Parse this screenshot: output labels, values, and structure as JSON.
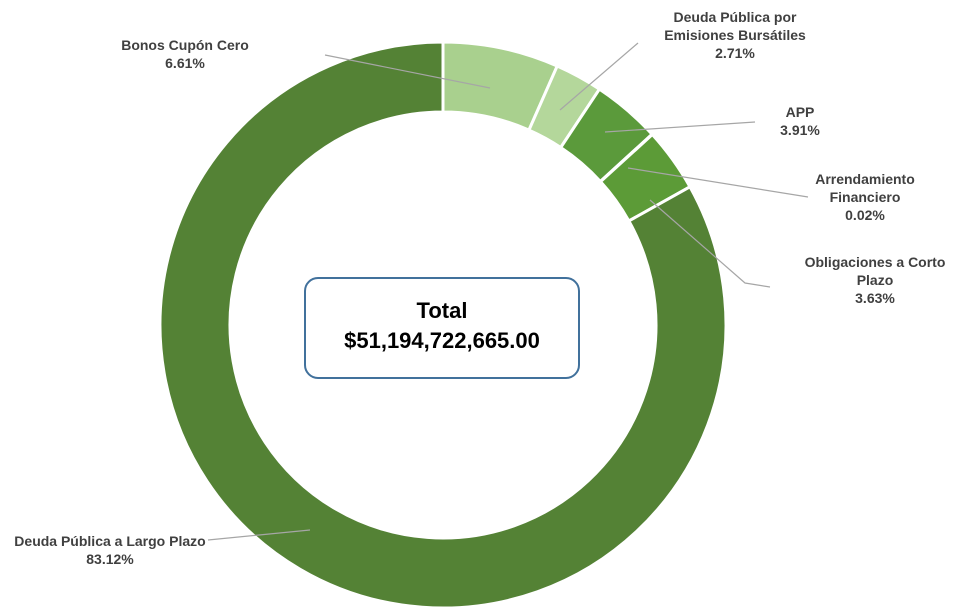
{
  "chart_data": {
    "type": "donut",
    "categories": [
      "Bonos Cupón Cero",
      "Deuda Pública por Emisiones Bursátiles",
      "APP",
      "Arrendamiento Financiero",
      "Obligaciones a Corto Plazo",
      "Deuda Pública a Largo Plazo"
    ],
    "values": [
      6.61,
      2.71,
      3.91,
      0.02,
      3.63,
      83.12
    ],
    "value_labels": [
      "6.61%",
      "2.71%",
      "3.91%",
      "0.02%",
      "3.63%",
      "83.12%"
    ],
    "colors": [
      "#a9d08e",
      "#b4d79b",
      "#5b9a3b",
      "#70ad47",
      "#5c9b37",
      "#548235"
    ],
    "center_title": "Total",
    "center_value": "$51,194,722,665.00"
  }
}
